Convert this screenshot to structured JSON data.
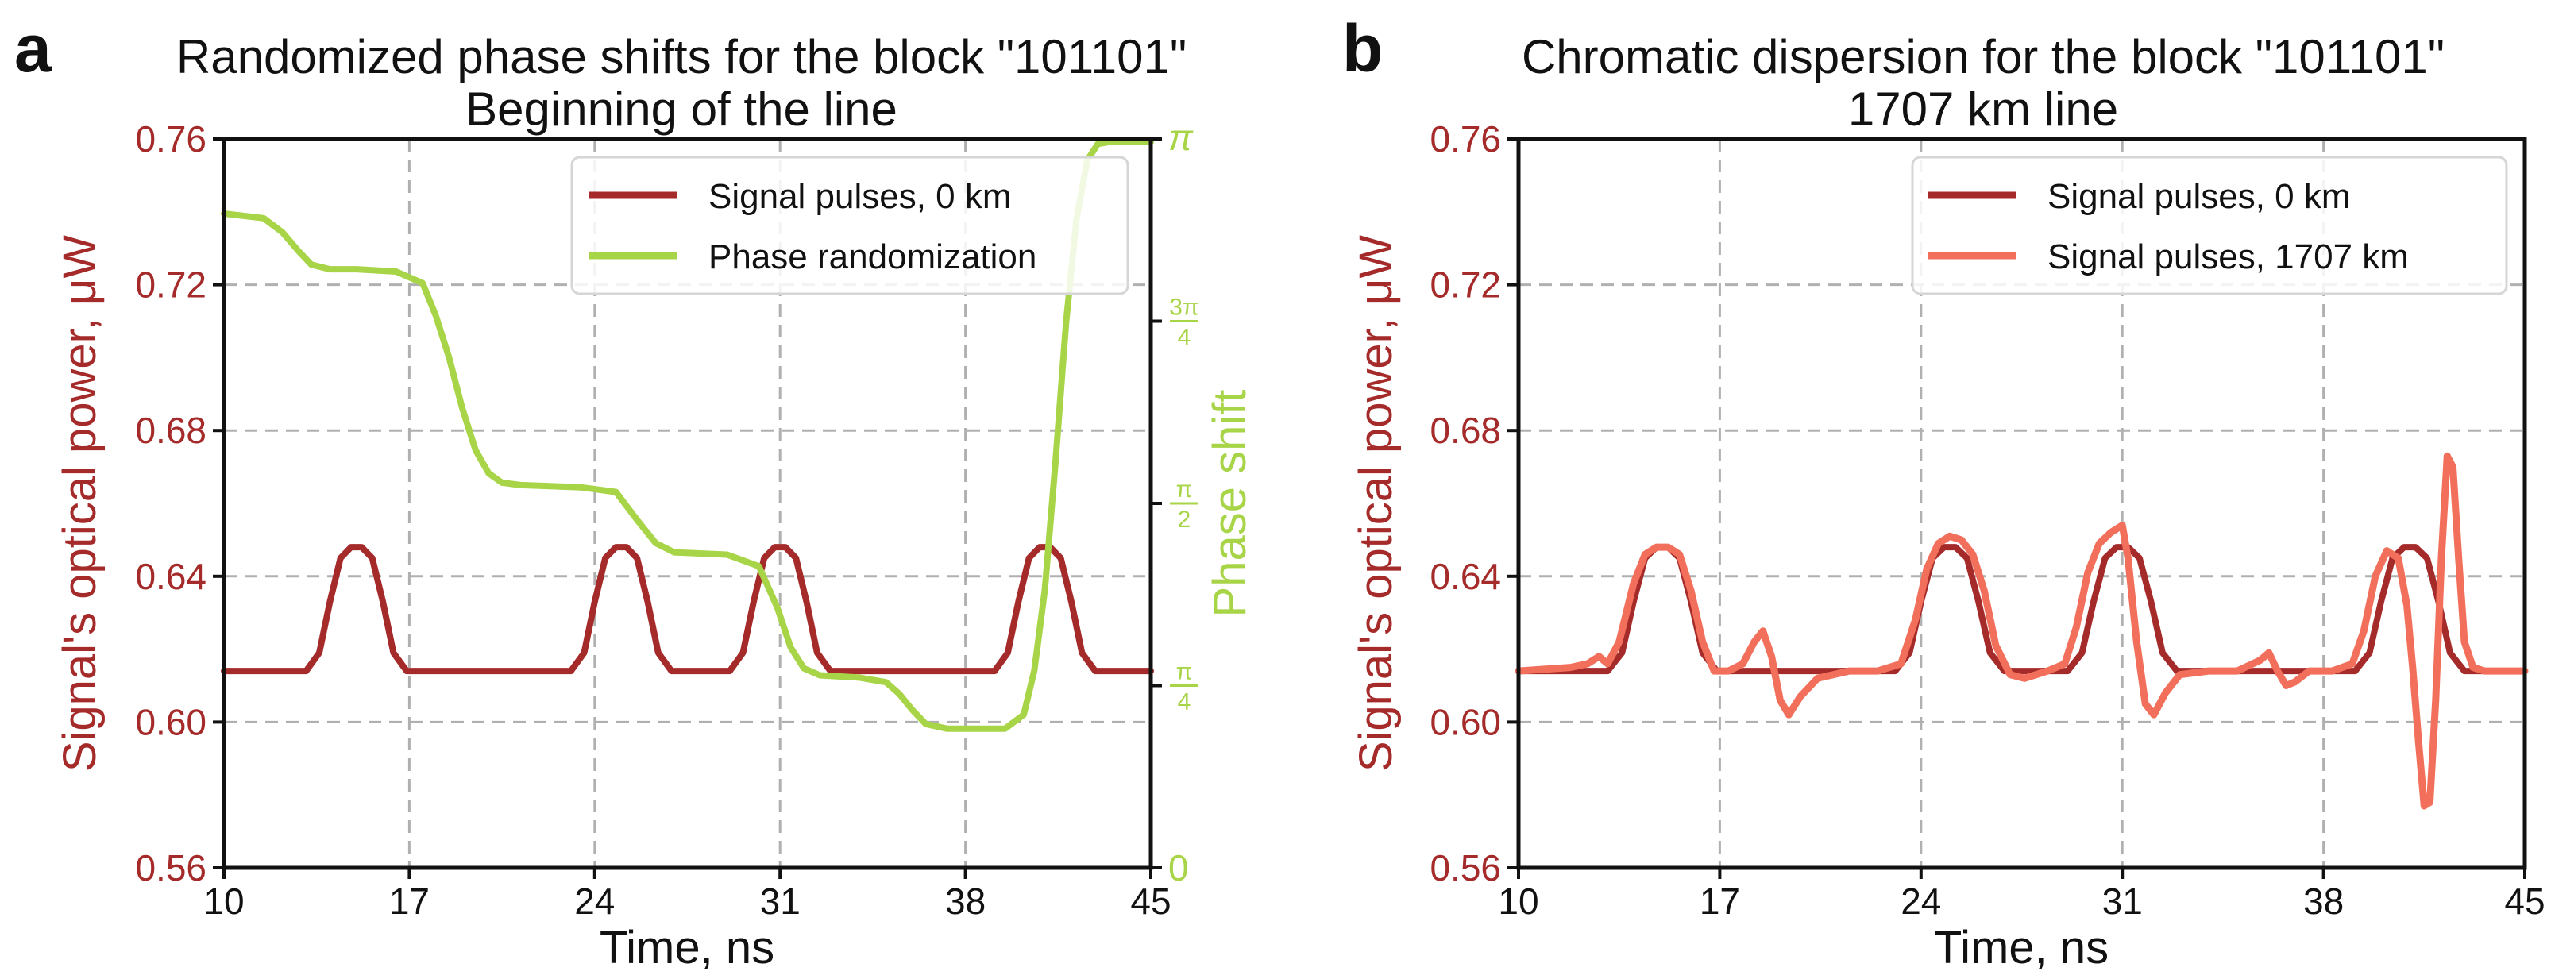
{
  "colors": {
    "signal": "#a52a2a",
    "phase": "#a8d448",
    "signal_far": "#f2705b",
    "text": "#111111"
  },
  "chart_data": [
    {
      "type": "line",
      "panel_letter": "a",
      "title": [
        "Randomized phase shifts for the block \"101101\"",
        "Beginning of the line"
      ],
      "xlabel": "Time, ns",
      "ylabel": "Signal's optical power, μW",
      "ylabel_right": "Phase shift",
      "xlim": [
        10,
        45
      ],
      "ylim": [
        0.56,
        0.76
      ],
      "x_ticks": [
        "10",
        "17",
        "24",
        "31",
        "38",
        "45"
      ],
      "y_ticks": [
        "0.56",
        "0.60",
        "0.64",
        "0.68",
        "0.72",
        "0.76"
      ],
      "y2_lim": [
        0,
        3.1416
      ],
      "y2_ticks": [
        {
          "value": 0,
          "label": "0"
        },
        {
          "value": 0.7854,
          "num": "π",
          "den": "4"
        },
        {
          "value": 1.5708,
          "num": "π",
          "den": "2"
        },
        {
          "value": 2.3562,
          "num": "3π",
          "den": "4"
        },
        {
          "value": 3.1416,
          "label": "π"
        }
      ],
      "legend": [
        "Signal pulses, 0 km",
        "Phase randomization"
      ],
      "legend_loc": "upper right",
      "grid": true,
      "series": [
        {
          "name": "Signal pulses, 0 km",
          "axis": "left",
          "x": [
            10,
            13.1,
            13.6,
            14.0,
            14.4,
            14.8,
            15.2,
            15.6,
            16.0,
            16.4,
            16.9,
            23.1,
            23.6,
            24.0,
            24.4,
            24.8,
            25.2,
            25.6,
            26.0,
            26.4,
            26.9,
            29.1,
            29.6,
            30.0,
            30.4,
            30.8,
            31.2,
            31.6,
            32.0,
            32.4,
            32.9,
            39.1,
            39.6,
            40.0,
            40.4,
            40.8,
            41.2,
            41.6,
            42.0,
            42.4,
            42.9,
            45
          ],
          "y": [
            0.614,
            0.614,
            0.619,
            0.633,
            0.645,
            0.648,
            0.648,
            0.645,
            0.633,
            0.619,
            0.614,
            0.614,
            0.619,
            0.633,
            0.645,
            0.648,
            0.648,
            0.645,
            0.633,
            0.619,
            0.614,
            0.614,
            0.619,
            0.633,
            0.645,
            0.648,
            0.648,
            0.645,
            0.633,
            0.619,
            0.614,
            0.614,
            0.619,
            0.633,
            0.645,
            0.648,
            0.648,
            0.645,
            0.633,
            0.619,
            0.614,
            0.614
          ]
        },
        {
          "name": "Phase randomization",
          "axis": "right",
          "x": [
            10,
            11.5,
            12.2,
            12.8,
            13.3,
            14,
            15,
            16.5,
            17.5,
            18.0,
            18.5,
            19.0,
            19.5,
            20.0,
            20.5,
            21.2,
            23.5,
            24.8,
            25.6,
            26.3,
            27,
            29,
            30.2,
            30.9,
            31.4,
            31.9,
            32.5,
            34,
            35,
            35.5,
            36.0,
            36.5,
            37.3,
            39.5,
            40.2,
            40.6,
            41.0,
            41.4,
            41.8,
            42.2,
            42.6,
            43,
            43.5,
            45
          ],
          "y": [
            2.82,
            2.8,
            2.74,
            2.66,
            2.6,
            2.58,
            2.58,
            2.57,
            2.52,
            2.38,
            2.2,
            1.98,
            1.8,
            1.7,
            1.66,
            1.65,
            1.64,
            1.62,
            1.5,
            1.4,
            1.36,
            1.35,
            1.3,
            1.12,
            0.95,
            0.86,
            0.83,
            0.82,
            0.8,
            0.75,
            0.68,
            0.62,
            0.6,
            0.6,
            0.66,
            0.85,
            1.2,
            1.75,
            2.35,
            2.8,
            3.05,
            3.12,
            3.13,
            3.13
          ]
        }
      ]
    },
    {
      "type": "line",
      "panel_letter": "b",
      "title": [
        "Chromatic dispersion for the block \"101101\"",
        "1707 km line"
      ],
      "xlabel": "Time, ns",
      "ylabel": "Signal's optical power, μW",
      "xlim": [
        10,
        45
      ],
      "ylim": [
        0.56,
        0.76
      ],
      "x_ticks": [
        "10",
        "17",
        "24",
        "31",
        "38",
        "45"
      ],
      "y_ticks": [
        "0.56",
        "0.60",
        "0.64",
        "0.68",
        "0.72",
        "0.76"
      ],
      "legend": [
        "Signal pulses, 0 km",
        "Signal pulses, 1707 km"
      ],
      "legend_loc": "upper right",
      "grid": true,
      "series": [
        {
          "name": "Signal pulses, 0 km",
          "x": [
            10,
            13.1,
            13.6,
            14.0,
            14.4,
            14.8,
            15.2,
            15.6,
            16.0,
            16.4,
            16.9,
            23.1,
            23.6,
            24.0,
            24.4,
            24.8,
            25.2,
            25.6,
            26.0,
            26.4,
            26.9,
            29.1,
            29.6,
            30.0,
            30.4,
            30.8,
            31.2,
            31.6,
            32.0,
            32.4,
            32.9,
            39.1,
            39.6,
            40.0,
            40.4,
            40.8,
            41.2,
            41.6,
            42.0,
            42.4,
            42.9,
            45
          ],
          "y": [
            0.614,
            0.614,
            0.619,
            0.633,
            0.645,
            0.648,
            0.648,
            0.645,
            0.633,
            0.619,
            0.614,
            0.614,
            0.619,
            0.633,
            0.645,
            0.648,
            0.648,
            0.645,
            0.633,
            0.619,
            0.614,
            0.614,
            0.619,
            0.633,
            0.645,
            0.648,
            0.648,
            0.645,
            0.633,
            0.619,
            0.614,
            0.614,
            0.619,
            0.633,
            0.645,
            0.648,
            0.648,
            0.645,
            0.633,
            0.619,
            0.614,
            0.614
          ]
        },
        {
          "name": "Signal pulses, 1707 km",
          "x": [
            10,
            11.8,
            12.4,
            12.8,
            13.1,
            13.5,
            14.0,
            14.4,
            14.8,
            15.2,
            15.6,
            16.0,
            16.4,
            16.8,
            17.3,
            17.8,
            18.2,
            18.5,
            18.8,
            19.1,
            19.4,
            19.8,
            20.4,
            21.5,
            22.5,
            23.3,
            23.8,
            24.2,
            24.6,
            25.0,
            25.4,
            25.8,
            26.2,
            26.6,
            27.1,
            27.6,
            28.4,
            29.0,
            29.4,
            29.8,
            30.2,
            30.6,
            31.0,
            31.2,
            31.5,
            31.8,
            32.1,
            32.5,
            33.0,
            34.0,
            35.0,
            35.8,
            36.1,
            36.4,
            36.7,
            37.0,
            37.5,
            38.3,
            39.0,
            39.4,
            39.8,
            40.2,
            40.6,
            40.9,
            41.1,
            41.3,
            41.5,
            41.7,
            41.9,
            42.1,
            42.3,
            42.5,
            42.7,
            42.9,
            43.2,
            43.6,
            44.2,
            45
          ],
          "y": [
            0.614,
            0.615,
            0.616,
            0.618,
            0.616,
            0.622,
            0.638,
            0.646,
            0.648,
            0.648,
            0.646,
            0.636,
            0.622,
            0.614,
            0.614,
            0.616,
            0.622,
            0.625,
            0.618,
            0.606,
            0.602,
            0.607,
            0.612,
            0.614,
            0.614,
            0.616,
            0.628,
            0.642,
            0.649,
            0.651,
            0.65,
            0.646,
            0.636,
            0.621,
            0.613,
            0.612,
            0.614,
            0.616,
            0.626,
            0.641,
            0.649,
            0.652,
            0.654,
            0.645,
            0.622,
            0.605,
            0.602,
            0.608,
            0.613,
            0.614,
            0.614,
            0.617,
            0.619,
            0.614,
            0.61,
            0.611,
            0.614,
            0.614,
            0.616,
            0.625,
            0.64,
            0.647,
            0.645,
            0.632,
            0.615,
            0.595,
            0.577,
            0.578,
            0.606,
            0.645,
            0.673,
            0.67,
            0.645,
            0.622,
            0.615,
            0.614,
            0.614,
            0.614
          ]
        }
      ]
    }
  ]
}
